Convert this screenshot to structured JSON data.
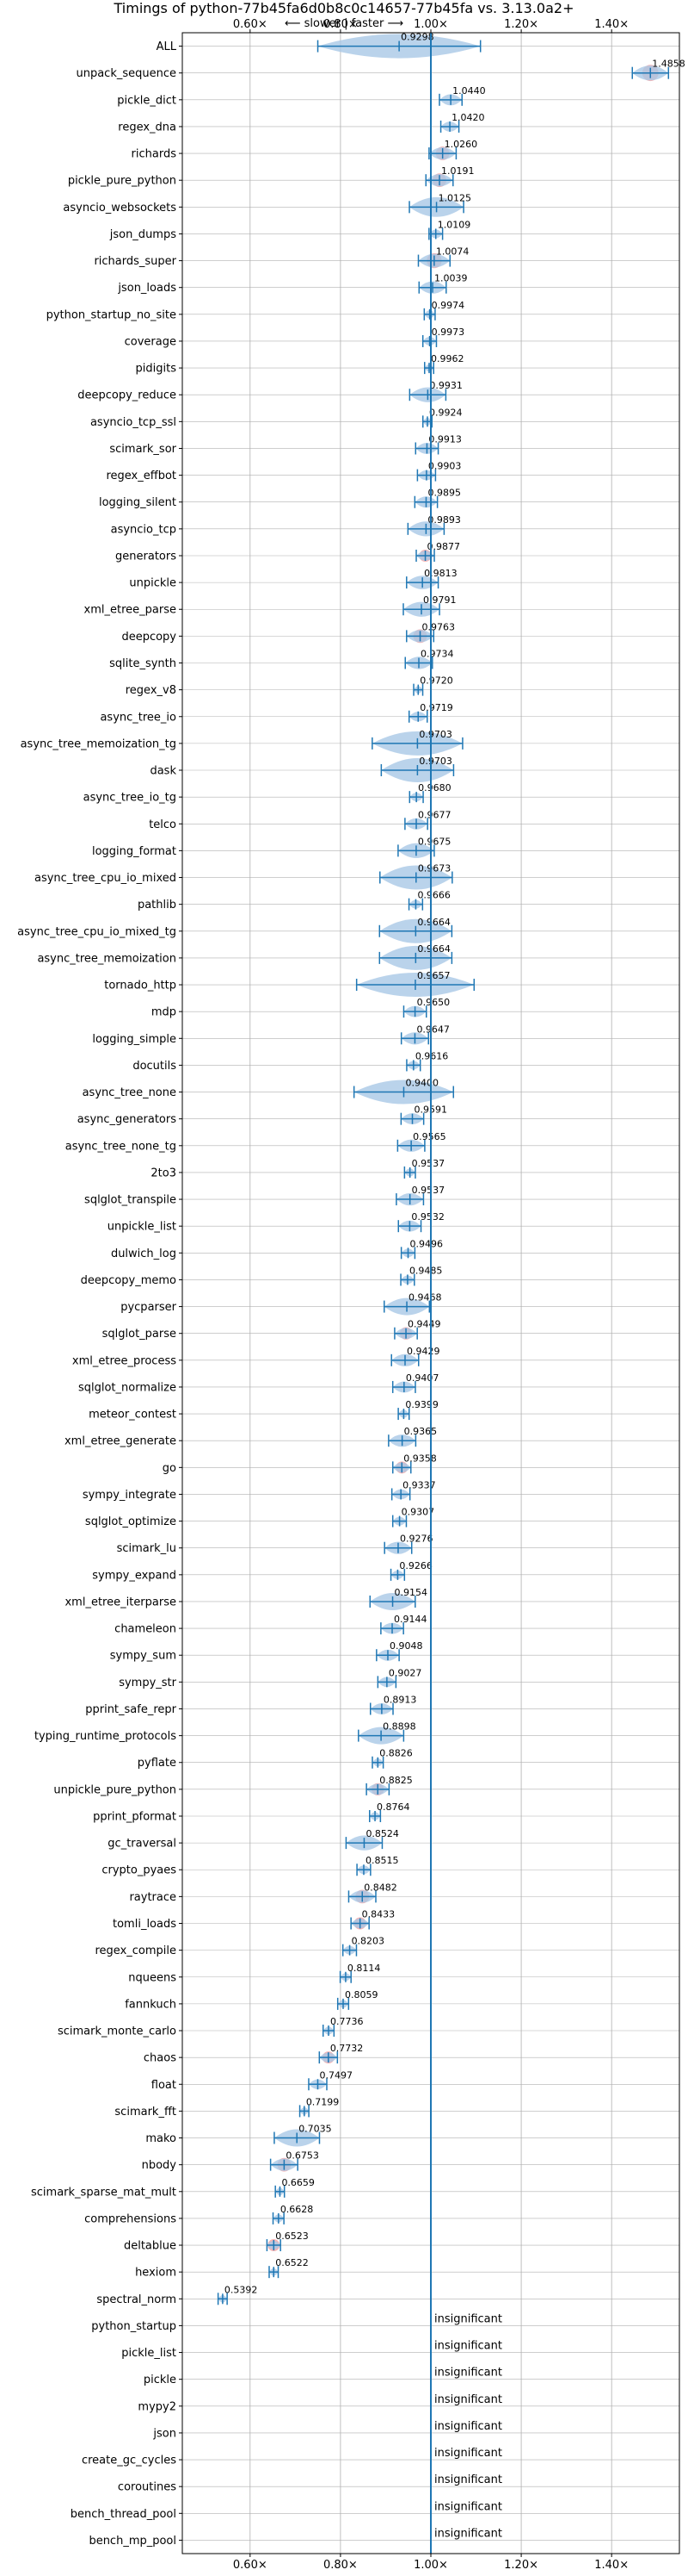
{
  "chart_data": {
    "type": "violin",
    "title": "Timings of python-77b45fa6d0b8c0c14657-77b45fa vs. 3.13.0a2+",
    "direction_label": "⟵ slower | faster ⟶",
    "x_ticks": [
      "0.60×",
      "0.80×",
      "1.00×",
      "1.20×",
      "1.40×"
    ],
    "x_tick_values": [
      0.6,
      0.8,
      1.0,
      1.2,
      1.4
    ],
    "xlim": [
      0.45,
      1.55
    ],
    "grid": true,
    "reference_line": 1.0,
    "insignificant_label": "insignificant",
    "colors": {
      "violin": "#a9c8e6",
      "line": "#1f77b4",
      "highlight": "#f4a7a7",
      "grid": "#b0b0b0"
    },
    "benchmarks": [
      {
        "name": "ALL",
        "value": 0.9298,
        "label": "0.9298",
        "spread": 0.18,
        "red": false
      },
      {
        "name": "unpack_sequence",
        "value": 1.4858,
        "label": "1.4858",
        "spread": 0.04,
        "red": true
      },
      {
        "name": "pickle_dict",
        "value": 1.044,
        "label": "1.0440",
        "spread": 0.025,
        "red": false
      },
      {
        "name": "regex_dna",
        "value": 1.042,
        "label": "1.0420",
        "spread": 0.02,
        "red": false
      },
      {
        "name": "richards",
        "value": 1.026,
        "label": "1.0260",
        "spread": 0.03,
        "red": true
      },
      {
        "name": "pickle_pure_python",
        "value": 1.0191,
        "label": "1.0191",
        "spread": 0.03,
        "red": true
      },
      {
        "name": "asyncio_websockets",
        "value": 1.0125,
        "label": "1.0125",
        "spread": 0.06,
        "red": false
      },
      {
        "name": "json_dumps",
        "value": 1.0109,
        "label": "1.0109",
        "spread": 0.015,
        "red": false
      },
      {
        "name": "richards_super",
        "value": 1.0074,
        "label": "1.0074",
        "spread": 0.035,
        "red": true
      },
      {
        "name": "json_loads",
        "value": 1.0039,
        "label": "1.0039",
        "spread": 0.03,
        "red": false
      },
      {
        "name": "python_startup_no_site",
        "value": 0.9974,
        "label": "0.9974",
        "spread": 0.012,
        "red": false
      },
      {
        "name": "coverage",
        "value": 0.9973,
        "label": "0.9973",
        "spread": 0.015,
        "red": false
      },
      {
        "name": "pidigits",
        "value": 0.9962,
        "label": "0.9962",
        "spread": 0.01,
        "red": false
      },
      {
        "name": "deepcopy_reduce",
        "value": 0.9931,
        "label": "0.9931",
        "spread": 0.04,
        "red": false
      },
      {
        "name": "asyncio_tcp_ssl",
        "value": 0.9924,
        "label": "0.9924",
        "spread": 0.01,
        "red": false
      },
      {
        "name": "scimark_sor",
        "value": 0.9913,
        "label": "0.9913",
        "spread": 0.025,
        "red": false
      },
      {
        "name": "regex_effbot",
        "value": 0.9903,
        "label": "0.9903",
        "spread": 0.02,
        "red": false
      },
      {
        "name": "logging_silent",
        "value": 0.9895,
        "label": "0.9895",
        "spread": 0.025,
        "red": false
      },
      {
        "name": "asyncio_tcp",
        "value": 0.9893,
        "label": "0.9893",
        "spread": 0.04,
        "red": false
      },
      {
        "name": "generators",
        "value": 0.9877,
        "label": "0.9877",
        "spread": 0.02,
        "red": true
      },
      {
        "name": "unpickle",
        "value": 0.9813,
        "label": "0.9813",
        "spread": 0.035,
        "red": false
      },
      {
        "name": "xml_etree_parse",
        "value": 0.9791,
        "label": "0.9791",
        "spread": 0.04,
        "red": false
      },
      {
        "name": "deepcopy",
        "value": 0.9763,
        "label": "0.9763",
        "spread": 0.03,
        "red": true
      },
      {
        "name": "sqlite_synth",
        "value": 0.9734,
        "label": "0.9734",
        "spread": 0.03,
        "red": false
      },
      {
        "name": "regex_v8",
        "value": 0.972,
        "label": "0.9720",
        "spread": 0.01,
        "red": false
      },
      {
        "name": "async_tree_io",
        "value": 0.9719,
        "label": "0.9719",
        "spread": 0.02,
        "red": false
      },
      {
        "name": "async_tree_memoization_tg",
        "value": 0.9703,
        "label": "0.9703",
        "spread": 0.1,
        "red": false
      },
      {
        "name": "dask",
        "value": 0.9703,
        "label": "0.9703",
        "spread": 0.08,
        "red": false
      },
      {
        "name": "async_tree_io_tg",
        "value": 0.968,
        "label": "0.9680",
        "spread": 0.015,
        "red": false
      },
      {
        "name": "telco",
        "value": 0.9677,
        "label": "0.9677",
        "spread": 0.025,
        "red": false
      },
      {
        "name": "logging_format",
        "value": 0.9675,
        "label": "0.9675",
        "spread": 0.04,
        "red": false
      },
      {
        "name": "async_tree_cpu_io_mixed",
        "value": 0.9673,
        "label": "0.9673",
        "spread": 0.08,
        "red": false
      },
      {
        "name": "pathlib",
        "value": 0.9666,
        "label": "0.9666",
        "spread": 0.015,
        "red": false
      },
      {
        "name": "async_tree_cpu_io_mixed_tg",
        "value": 0.9664,
        "label": "0.9664",
        "spread": 0.08,
        "red": false
      },
      {
        "name": "async_tree_memoization",
        "value": 0.9664,
        "label": "0.9664",
        "spread": 0.08,
        "red": false
      },
      {
        "name": "tornado_http",
        "value": 0.9657,
        "label": "0.9657",
        "spread": 0.13,
        "red": false
      },
      {
        "name": "mdp",
        "value": 0.965,
        "label": "0.9650",
        "spread": 0.025,
        "red": false
      },
      {
        "name": "logging_simple",
        "value": 0.9647,
        "label": "0.9647",
        "spread": 0.03,
        "red": false
      },
      {
        "name": "docutils",
        "value": 0.9616,
        "label": "0.9616",
        "spread": 0.015,
        "red": false
      },
      {
        "name": "async_tree_none",
        "value": 0.94,
        "label": "0.9400",
        "spread": 0.11,
        "red": false
      },
      {
        "name": "async_generators",
        "value": 0.9591,
        "label": "0.9591",
        "spread": 0.025,
        "red": false
      },
      {
        "name": "async_tree_none_tg",
        "value": 0.9565,
        "label": "0.9565",
        "spread": 0.03,
        "red": false
      },
      {
        "name": "2to3",
        "value": 0.9537,
        "label": "0.9537",
        "spread": 0.012,
        "red": false
      },
      {
        "name": "sqlglot_transpile",
        "value": 0.9537,
        "label": "0.9537",
        "spread": 0.03,
        "red": false
      },
      {
        "name": "unpickle_list",
        "value": 0.9532,
        "label": "0.9532",
        "spread": 0.025,
        "red": false
      },
      {
        "name": "dulwich_log",
        "value": 0.9496,
        "label": "0.9496",
        "spread": 0.015,
        "red": false
      },
      {
        "name": "deepcopy_memo",
        "value": 0.9485,
        "label": "0.9485",
        "spread": 0.015,
        "red": false
      },
      {
        "name": "pycparser",
        "value": 0.9468,
        "label": "0.9468",
        "spread": 0.05,
        "red": false
      },
      {
        "name": "sqlglot_parse",
        "value": 0.9449,
        "label": "0.9449",
        "spread": 0.025,
        "red": true
      },
      {
        "name": "xml_etree_process",
        "value": 0.9429,
        "label": "0.9429",
        "spread": 0.03,
        "red": false
      },
      {
        "name": "sqlglot_normalize",
        "value": 0.9407,
        "label": "0.9407",
        "spread": 0.025,
        "red": false
      },
      {
        "name": "meteor_contest",
        "value": 0.9399,
        "label": "0.9399",
        "spread": 0.012,
        "red": false
      },
      {
        "name": "xml_etree_generate",
        "value": 0.9365,
        "label": "0.9365",
        "spread": 0.03,
        "red": false
      },
      {
        "name": "go",
        "value": 0.9358,
        "label": "0.9358",
        "spread": 0.02,
        "red": true
      },
      {
        "name": "sympy_integrate",
        "value": 0.9337,
        "label": "0.9337",
        "spread": 0.02,
        "red": false
      },
      {
        "name": "sqlglot_optimize",
        "value": 0.9307,
        "label": "0.9307",
        "spread": 0.015,
        "red": false
      },
      {
        "name": "scimark_lu",
        "value": 0.9276,
        "label": "0.9276",
        "spread": 0.03,
        "red": false
      },
      {
        "name": "sympy_expand",
        "value": 0.9266,
        "label": "0.9266",
        "spread": 0.015,
        "red": false
      },
      {
        "name": "xml_etree_iterparse",
        "value": 0.9154,
        "label": "0.9154",
        "spread": 0.05,
        "red": false
      },
      {
        "name": "chameleon",
        "value": 0.9144,
        "label": "0.9144",
        "spread": 0.025,
        "red": false
      },
      {
        "name": "sympy_sum",
        "value": 0.9048,
        "label": "0.9048",
        "spread": 0.025,
        "red": false
      },
      {
        "name": "sympy_str",
        "value": 0.9027,
        "label": "0.9027",
        "spread": 0.02,
        "red": false
      },
      {
        "name": "pprint_safe_repr",
        "value": 0.8913,
        "label": "0.8913",
        "spread": 0.025,
        "red": false
      },
      {
        "name": "typing_runtime_protocols",
        "value": 0.8898,
        "label": "0.8898",
        "spread": 0.05,
        "red": false
      },
      {
        "name": "pyflate",
        "value": 0.8826,
        "label": "0.8826",
        "spread": 0.012,
        "red": false
      },
      {
        "name": "unpickle_pure_python",
        "value": 0.8825,
        "label": "0.8825",
        "spread": 0.025,
        "red": true
      },
      {
        "name": "pprint_pformat",
        "value": 0.8764,
        "label": "0.8764",
        "spread": 0.012,
        "red": false
      },
      {
        "name": "gc_traversal",
        "value": 0.8524,
        "label": "0.8524",
        "spread": 0.04,
        "red": false
      },
      {
        "name": "crypto_pyaes",
        "value": 0.8515,
        "label": "0.8515",
        "spread": 0.015,
        "red": false
      },
      {
        "name": "raytrace",
        "value": 0.8482,
        "label": "0.8482",
        "spread": 0.03,
        "red": true
      },
      {
        "name": "tomli_loads",
        "value": 0.8433,
        "label": "0.8433",
        "spread": 0.02,
        "red": true
      },
      {
        "name": "regex_compile",
        "value": 0.8203,
        "label": "0.8203",
        "spread": 0.015,
        "red": false
      },
      {
        "name": "nqueens",
        "value": 0.8114,
        "label": "0.8114",
        "spread": 0.012,
        "red": false
      },
      {
        "name": "fannkuch",
        "value": 0.8059,
        "label": "0.8059",
        "spread": 0.012,
        "red": false
      },
      {
        "name": "scimark_monte_carlo",
        "value": 0.7736,
        "label": "0.7736",
        "spread": 0.012,
        "red": false
      },
      {
        "name": "chaos",
        "value": 0.7732,
        "label": "0.7732",
        "spread": 0.02,
        "red": true
      },
      {
        "name": "float",
        "value": 0.7497,
        "label": "0.7497",
        "spread": 0.02,
        "red": false
      },
      {
        "name": "scimark_fft",
        "value": 0.7199,
        "label": "0.7199",
        "spread": 0.01,
        "red": false
      },
      {
        "name": "mako",
        "value": 0.7035,
        "label": "0.7035",
        "spread": 0.05,
        "red": false
      },
      {
        "name": "nbody",
        "value": 0.6753,
        "label": "0.6753",
        "spread": 0.03,
        "red": true
      },
      {
        "name": "scimark_sparse_mat_mult",
        "value": 0.6659,
        "label": "0.6659",
        "spread": 0.01,
        "red": false
      },
      {
        "name": "comprehensions",
        "value": 0.6628,
        "label": "0.6628",
        "spread": 0.012,
        "red": false
      },
      {
        "name": "deltablue",
        "value": 0.6523,
        "label": "0.6523",
        "spread": 0.015,
        "red": true
      },
      {
        "name": "hexiom",
        "value": 0.6522,
        "label": "0.6522",
        "spread": 0.01,
        "red": false
      },
      {
        "name": "spectral_norm",
        "value": 0.5392,
        "label": "0.5392",
        "spread": 0.01,
        "red": false
      },
      {
        "name": "python_startup",
        "value": null,
        "label": null,
        "spread": 0,
        "red": false
      },
      {
        "name": "pickle_list",
        "value": null,
        "label": null,
        "spread": 0,
        "red": false
      },
      {
        "name": "pickle",
        "value": null,
        "label": null,
        "spread": 0,
        "red": false
      },
      {
        "name": "mypy2",
        "value": null,
        "label": null,
        "spread": 0,
        "red": false
      },
      {
        "name": "json",
        "value": null,
        "label": null,
        "spread": 0,
        "red": false
      },
      {
        "name": "create_gc_cycles",
        "value": null,
        "label": null,
        "spread": 0,
        "red": false
      },
      {
        "name": "coroutines",
        "value": null,
        "label": null,
        "spread": 0,
        "red": false
      },
      {
        "name": "bench_thread_pool",
        "value": null,
        "label": null,
        "spread": 0,
        "red": false
      },
      {
        "name": "bench_mp_pool",
        "value": null,
        "label": null,
        "spread": 0,
        "red": false
      }
    ]
  }
}
